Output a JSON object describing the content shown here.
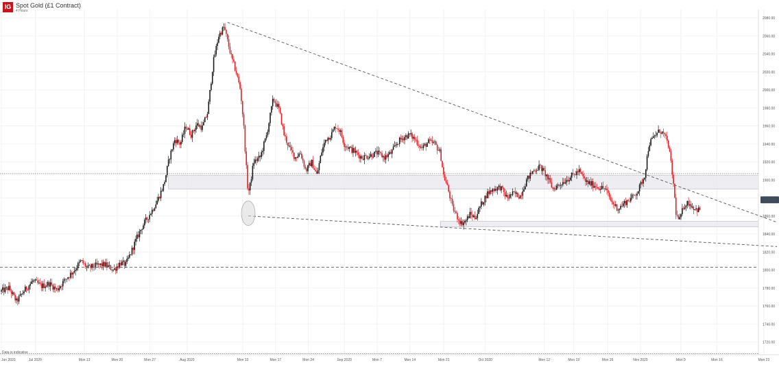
{
  "header": {
    "logo": "IG",
    "title": "Spot Gold (£1 Contract)",
    "subtitle": "4 Hours"
  },
  "chart_data": {
    "type": "candlestick",
    "title": "Spot Gold (£1 Contract)",
    "interval": "4 Hours",
    "ylim": [
      1706,
      2104
    ],
    "y_ticks": [
      1720,
      1740,
      1760,
      1780,
      1800,
      1820,
      1840,
      1860,
      1880,
      1900,
      1920,
      1940,
      1960,
      1980,
      2000,
      2020,
      2040,
      2060,
      2080
    ],
    "y_tick_labels": [
      "1720.00",
      "1740.00",
      "1760.00",
      "1780.00",
      "1800.00",
      "1820.00",
      "1840.00",
      "1860.00",
      "1880.00",
      "1900.00",
      "1920.00",
      "1940.00",
      "1960.00",
      "1980.00",
      "2000.00",
      "2020.00",
      "2040.00",
      "2060.00",
      "2080.00"
    ],
    "x_ticks": [
      {
        "label": "Jun 2020",
        "t": 0
      },
      {
        "label": "Jul 2020",
        "t": 31
      },
      {
        "label": "Mon 13",
        "t": 76
      },
      {
        "label": "Mon 20",
        "t": 106
      },
      {
        "label": "Mon 27",
        "t": 136
      },
      {
        "label": "Aug 2020",
        "t": 170
      },
      {
        "label": "Mon 10",
        "t": 221
      },
      {
        "label": "Mon 17",
        "t": 251
      },
      {
        "label": "Mon 24",
        "t": 281
      },
      {
        "label": "Sep 2020",
        "t": 314
      },
      {
        "label": "Mon 7",
        "t": 344
      },
      {
        "label": "Mon 14",
        "t": 374
      },
      {
        "label": "Mon 21",
        "t": 405
      },
      {
        "label": "Oct 2020",
        "t": 443
      },
      {
        "label": "Mon 12",
        "t": 497
      },
      {
        "label": "Mon 19",
        "t": 524
      },
      {
        "label": "Mon 26",
        "t": 555
      },
      {
        "label": "Nov 2020",
        "t": 585
      },
      {
        "label": "Mon 9",
        "t": 622
      },
      {
        "label": "Mon 16",
        "t": 655
      },
      {
        "label": "Mon 23",
        "t": 698
      }
    ],
    "price_anchors": [
      [
        0,
        1776
      ],
      [
        8,
        1780
      ],
      [
        15,
        1765
      ],
      [
        22,
        1777
      ],
      [
        30,
        1788
      ],
      [
        38,
        1782
      ],
      [
        45,
        1785
      ],
      [
        52,
        1778
      ],
      [
        60,
        1790
      ],
      [
        68,
        1800
      ],
      [
        74,
        1810
      ],
      [
        80,
        1802
      ],
      [
        88,
        1805
      ],
      [
        96,
        1806
      ],
      [
        104,
        1800
      ],
      [
        110,
        1808
      ],
      [
        115,
        1806
      ],
      [
        120,
        1820
      ],
      [
        125,
        1835
      ],
      [
        130,
        1848
      ],
      [
        135,
        1858
      ],
      [
        140,
        1868
      ],
      [
        145,
        1880
      ],
      [
        150,
        1895
      ],
      [
        155,
        1925
      ],
      [
        160,
        1945
      ],
      [
        165,
        1940
      ],
      [
        170,
        1960
      ],
      [
        175,
        1950
      ],
      [
        180,
        1962
      ],
      [
        185,
        1958
      ],
      [
        190,
        1975
      ],
      [
        195,
        2030
      ],
      [
        200,
        2060
      ],
      [
        205,
        2070
      ],
      [
        208,
        2055
      ],
      [
        212,
        2035
      ],
      [
        216,
        2020
      ],
      [
        220,
        2000
      ],
      [
        223,
        1960
      ],
      [
        225,
        1920
      ],
      [
        227,
        1885
      ],
      [
        229,
        1895
      ],
      [
        232,
        1920
      ],
      [
        238,
        1925
      ],
      [
        244,
        1950
      ],
      [
        250,
        1990
      ],
      [
        255,
        1980
      ],
      [
        260,
        1950
      ],
      [
        265,
        1935
      ],
      [
        270,
        1925
      ],
      [
        275,
        1930
      ],
      [
        280,
        1910
      ],
      [
        285,
        1920
      ],
      [
        290,
        1905
      ],
      [
        294,
        1930
      ],
      [
        298,
        1945
      ],
      [
        303,
        1950
      ],
      [
        307,
        1960
      ],
      [
        311,
        1955
      ],
      [
        315,
        1940
      ],
      [
        320,
        1935
      ],
      [
        326,
        1930
      ],
      [
        331,
        1925
      ],
      [
        338,
        1927
      ],
      [
        345,
        1930
      ],
      [
        352,
        1925
      ],
      [
        358,
        1930
      ],
      [
        364,
        1942
      ],
      [
        370,
        1948
      ],
      [
        375,
        1950
      ],
      [
        380,
        1945
      ],
      [
        386,
        1935
      ],
      [
        392,
        1942
      ],
      [
        398,
        1940
      ],
      [
        403,
        1930
      ],
      [
        406,
        1905
      ],
      [
        410,
        1890
      ],
      [
        414,
        1870
      ],
      [
        418,
        1860
      ],
      [
        422,
        1852
      ],
      [
        426,
        1854
      ],
      [
        430,
        1862
      ],
      [
        435,
        1858
      ],
      [
        440,
        1872
      ],
      [
        446,
        1885
      ],
      [
        452,
        1890
      ],
      [
        458,
        1892
      ],
      [
        464,
        1880
      ],
      [
        470,
        1885
      ],
      [
        476,
        1882
      ],
      [
        482,
        1900
      ],
      [
        488,
        1910
      ],
      [
        494,
        1915
      ],
      [
        500,
        1905
      ],
      [
        506,
        1890
      ],
      [
        512,
        1895
      ],
      [
        518,
        1900
      ],
      [
        524,
        1905
      ],
      [
        530,
        1910
      ],
      [
        536,
        1898
      ],
      [
        542,
        1895
      ],
      [
        548,
        1892
      ],
      [
        554,
        1890
      ],
      [
        560,
        1875
      ],
      [
        566,
        1868
      ],
      [
        572,
        1875
      ],
      [
        578,
        1880
      ],
      [
        584,
        1888
      ],
      [
        590,
        1905
      ],
      [
        594,
        1940
      ],
      [
        600,
        1950
      ],
      [
        604,
        1955
      ],
      [
        608,
        1950
      ],
      [
        612,
        1938
      ],
      [
        616,
        1900
      ],
      [
        619,
        1860
      ],
      [
        622,
        1855
      ],
      [
        626,
        1872
      ],
      [
        630,
        1875
      ],
      [
        634,
        1870
      ],
      [
        638,
        1867
      ],
      [
        640,
        1867
      ]
    ],
    "last_price_label": "1877.91",
    "last_price": 1877.91,
    "support_zones": [
      {
        "top": 1905,
        "bottom": 1890
      },
      {
        "top": 1854,
        "bottom": 1848
      }
    ],
    "horizontal_lines": [
      {
        "price": 1907,
        "style": "dotted"
      },
      {
        "price": 1803,
        "style": "dashed"
      },
      {
        "price": 1707,
        "style": "dotted"
      }
    ],
    "trendlines": [
      {
        "from": [
          207,
          2075
        ],
        "to": [
          710,
          1853
        ],
        "style": "dashed"
      },
      {
        "from": [
          226,
          1860
        ],
        "to": [
          710,
          1826
        ],
        "style": "dashed"
      }
    ],
    "highlight": {
      "t": 226,
      "price": 1863
    },
    "footnote": "Data is indicative"
  }
}
